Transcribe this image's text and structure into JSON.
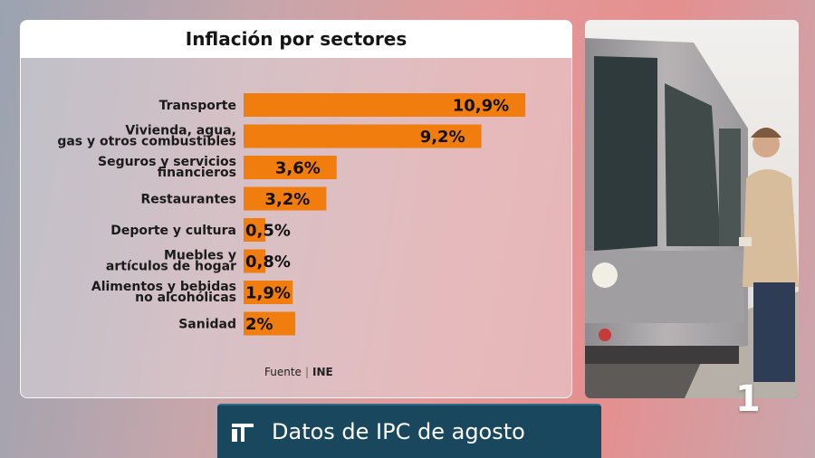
{
  "title": "Inflación por sectores",
  "source": {
    "label": "Fuente",
    "value": "INE"
  },
  "headline": "Datos de IPC de agosto",
  "channel_number": "1",
  "colors": {
    "bar": "#f07d0e",
    "headline_bg": "#18475e"
  },
  "chart_data": {
    "type": "bar",
    "orientation": "horizontal",
    "title": "Inflación por sectores",
    "categories": [
      [
        "Transporte"
      ],
      [
        "Vivienda, agua,",
        "gas y otros combustibles"
      ],
      [
        "Seguros y servicios",
        "financieros"
      ],
      [
        "Restaurantes"
      ],
      [
        "Deporte y cultura"
      ],
      [
        "Muebles y",
        "artículos de hogar"
      ],
      [
        "Alimentos y bebidas",
        "no alcohólicas"
      ],
      [
        "Sanidad"
      ]
    ],
    "values": [
      10.9,
      9.2,
      3.6,
      3.2,
      0.5,
      0.8,
      1.9,
      2
    ],
    "labels": [
      "10,9%",
      "9,2%",
      "3,6%",
      "3,2%",
      "0,5%",
      "0,8%",
      "1,9%",
      "2%"
    ],
    "xlim": [
      0,
      11
    ],
    "unit": "%",
    "grid": false,
    "legend": "none"
  }
}
